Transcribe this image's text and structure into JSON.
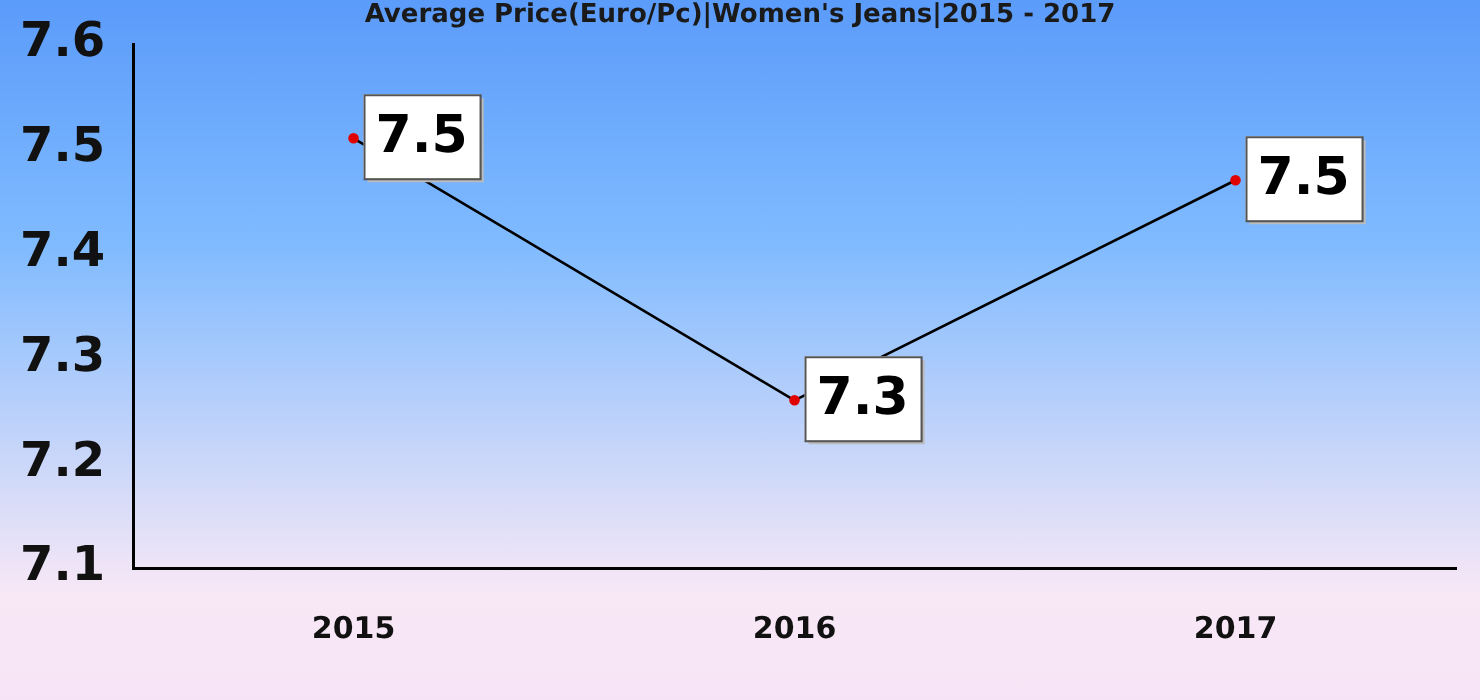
{
  "chart_data": {
    "type": "line",
    "title": "Average Price(Euro/Pc)|Women's Jeans|2015 - 2017",
    "categories": [
      "2015",
      "2016",
      "2017"
    ],
    "series": [
      {
        "color": "#000000",
        "values": [
          7.51,
          7.26,
          7.47
        ],
        "value_labels": [
          "7.5",
          "7.3",
          "7.5"
        ]
      }
    ],
    "ylim": [
      7.1,
      7.6
    ],
    "yticks": [
      7.1,
      7.2,
      7.3,
      7.4,
      7.5,
      7.6
    ],
    "grid": false,
    "legend": false,
    "marker": "circle"
  }
}
